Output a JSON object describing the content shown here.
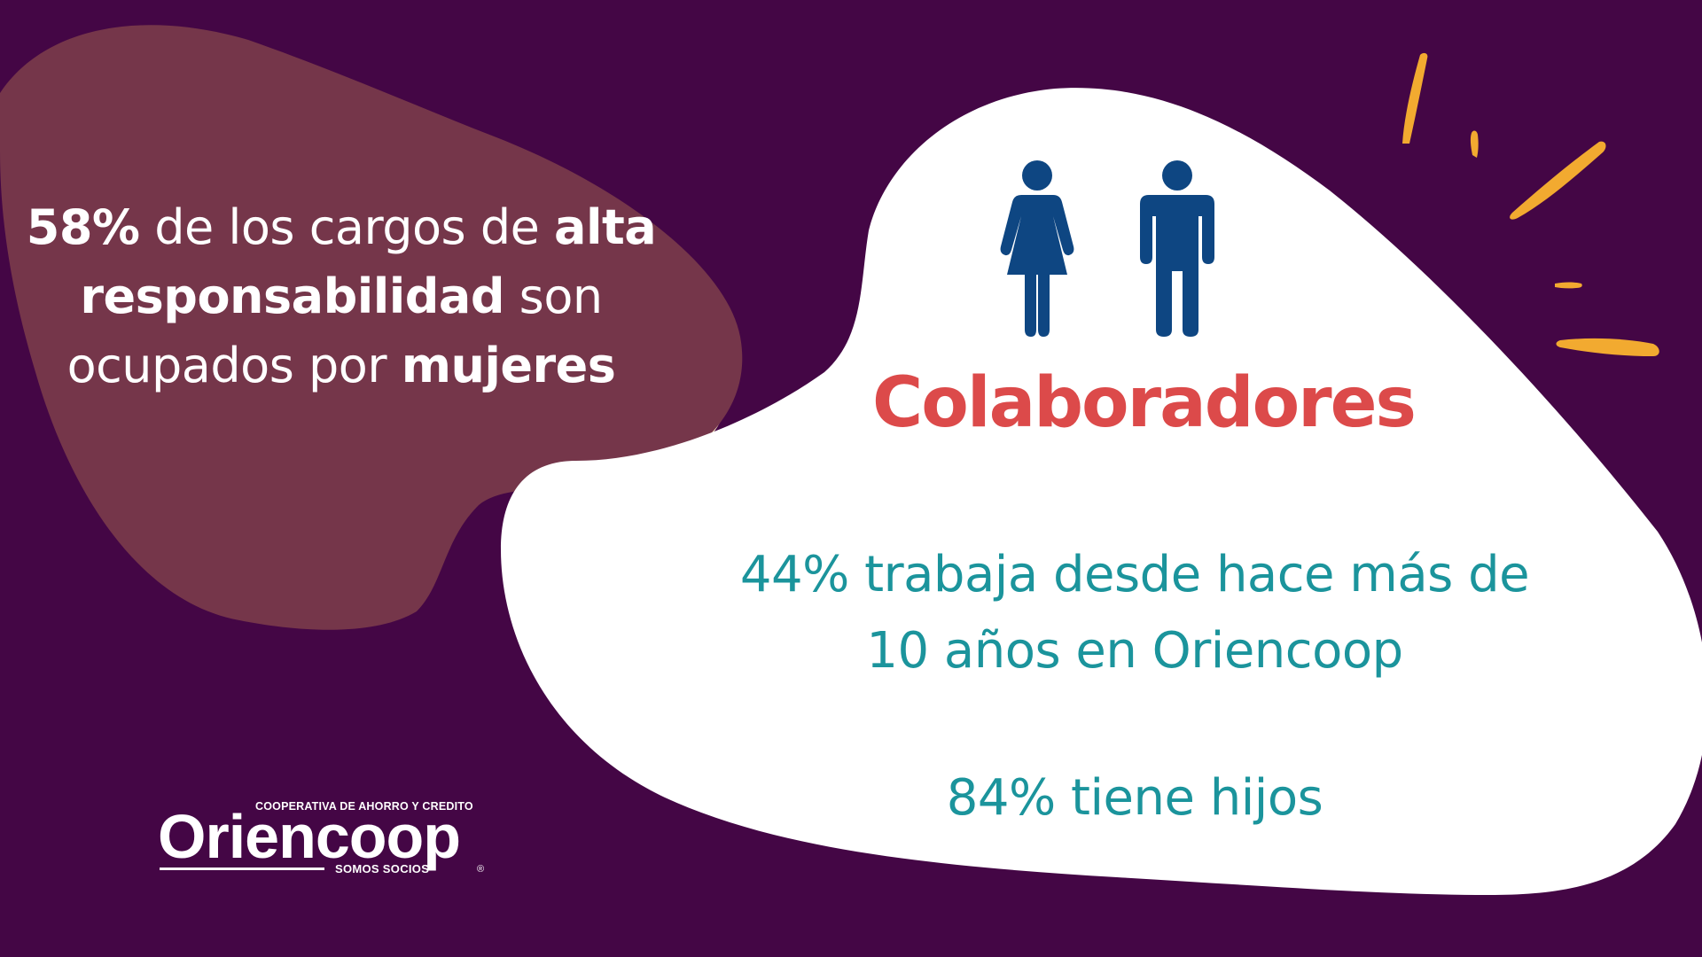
{
  "left_stat": {
    "percent": "58%",
    "part1": " de los cargos de ",
    "bold1": "alta",
    "bold2": "responsabilidad",
    "part2": " son",
    "part3": "ocupados por ",
    "bold3": "mujeres"
  },
  "title": "Colaboradores",
  "stats": {
    "tenure_line1": "44% trabaja desde hace más de",
    "tenure_line2": "10 años en Oriencoop",
    "children": "84% tiene hijos"
  },
  "logo": {
    "tagline": "COOPERATIVA DE AHORRO Y CREDITO",
    "name": "Oriencoop",
    "subtitle": "SOMOS SOCIOS",
    "registered": "®"
  },
  "icons": [
    "woman-icon",
    "man-icon"
  ],
  "colors": {
    "background": "#440645",
    "blob_left": "#75364a",
    "blob_cream": "#fcecc6",
    "title": "#dc4a4a",
    "stats_text": "#1b949c",
    "icons": "#0e4682",
    "rays": "#f2aa30"
  }
}
